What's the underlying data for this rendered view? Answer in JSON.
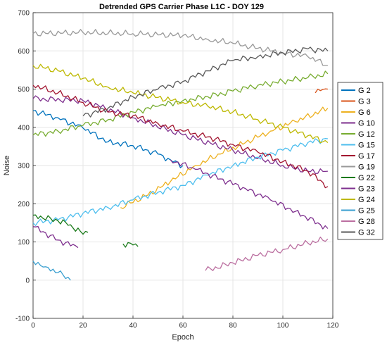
{
  "chart_data": {
    "type": "line",
    "title": "Detrended GPS Carrier Phase L1C - DOY 129",
    "xlabel": "Epoch",
    "ylabel": "Noise",
    "xlim": [
      0,
      120
    ],
    "ylim": [
      -100,
      700
    ],
    "xticks": [
      0,
      20,
      40,
      60,
      80,
      100,
      120
    ],
    "yticks": [
      -100,
      0,
      100,
      200,
      300,
      400,
      500,
      600,
      700
    ],
    "grid": true,
    "legend_position": "right",
    "series": [
      {
        "name": "G 2",
        "color": "#0072BD",
        "points": [
          [
            0,
            443
          ],
          [
            10,
            425
          ],
          [
            20,
            398
          ],
          [
            30,
            362
          ],
          [
            40,
            352
          ],
          [
            50,
            330
          ],
          [
            55,
            315
          ],
          [
            60,
            300
          ]
        ]
      },
      {
        "name": "G 3",
        "color": "#D95319",
        "points": [
          [
            113,
            490
          ],
          [
            115,
            496
          ],
          [
            118,
            500
          ]
        ]
      },
      {
        "name": "G 6",
        "color": "#EDB120",
        "points": [
          [
            35,
            190
          ],
          [
            45,
            220
          ],
          [
            55,
            258
          ],
          [
            65,
            300
          ],
          [
            75,
            330
          ],
          [
            85,
            360
          ],
          [
            95,
            390
          ],
          [
            105,
            415
          ],
          [
            118,
            450
          ]
        ]
      },
      {
        "name": "G 10",
        "color": "#7E2F8E",
        "points": [
          [
            0,
            475
          ],
          [
            20,
            470
          ],
          [
            40,
            425
          ],
          [
            60,
            380
          ],
          [
            80,
            340
          ],
          [
            100,
            300
          ],
          [
            110,
            285
          ],
          [
            118,
            285
          ]
        ]
      },
      {
        "name": "G 12",
        "color": "#77AC30",
        "points": [
          [
            0,
            380
          ],
          [
            10,
            390
          ],
          [
            20,
            405
          ],
          [
            30,
            420
          ],
          [
            40,
            440
          ],
          [
            50,
            455
          ],
          [
            60,
            470
          ],
          [
            70,
            480
          ],
          [
            80,
            495
          ],
          [
            90,
            510
          ],
          [
            100,
            520
          ],
          [
            110,
            530
          ],
          [
            118,
            540
          ]
        ]
      },
      {
        "name": "G 15",
        "color": "#4DBEEE",
        "points": [
          [
            0,
            150
          ],
          [
            10,
            158
          ],
          [
            20,
            175
          ],
          [
            30,
            190
          ],
          [
            40,
            210
          ],
          [
            50,
            230
          ],
          [
            60,
            248
          ],
          [
            70,
            275
          ],
          [
            80,
            300
          ],
          [
            90,
            322
          ],
          [
            100,
            340
          ],
          [
            110,
            360
          ],
          [
            118,
            370
          ]
        ]
      },
      {
        "name": "G 17",
        "color": "#A2142F",
        "points": [
          [
            0,
            510
          ],
          [
            10,
            490
          ],
          [
            20,
            465
          ],
          [
            30,
            440
          ],
          [
            40,
            430
          ],
          [
            50,
            410
          ],
          [
            60,
            390
          ],
          [
            70,
            375
          ],
          [
            80,
            355
          ],
          [
            90,
            335
          ],
          [
            100,
            310
          ],
          [
            110,
            285
          ],
          [
            118,
            245
          ]
        ]
      },
      {
        "name": "G 19",
        "color": "#999999",
        "points": [
          [
            0,
            645
          ],
          [
            20,
            648
          ],
          [
            40,
            645
          ],
          [
            60,
            640
          ],
          [
            70,
            630
          ],
          [
            80,
            620
          ],
          [
            90,
            607
          ],
          [
            100,
            595
          ],
          [
            110,
            585
          ],
          [
            118,
            562
          ]
        ]
      },
      {
        "name": "G 22",
        "color": "#1A7A1A",
        "points": [
          [
            0,
            170
          ],
          [
            10,
            155
          ],
          [
            15,
            145
          ],
          [
            20,
            120
          ],
          [
            22,
            125
          ]
        ]
      },
      {
        "name": "G 22 segment 2",
        "color": "#1A7A1A",
        "points": [
          [
            36,
            95
          ],
          [
            40,
            92
          ],
          [
            42,
            88
          ]
        ]
      },
      {
        "name": "G 23",
        "color": "#7E2F8E",
        "points": [
          [
            0,
            140
          ],
          [
            10,
            105
          ],
          [
            18,
            85
          ]
        ]
      },
      {
        "name": "G 23 segment 2",
        "color": "#7E2F8E",
        "points": [
          [
            55,
            315
          ],
          [
            65,
            290
          ],
          [
            75,
            265
          ],
          [
            85,
            240
          ],
          [
            95,
            210
          ],
          [
            105,
            180
          ],
          [
            118,
            135
          ]
        ]
      },
      {
        "name": "G 24",
        "color": "#BDB800",
        "points": [
          [
            0,
            562
          ],
          [
            10,
            548
          ],
          [
            20,
            528
          ],
          [
            30,
            505
          ],
          [
            40,
            490
          ],
          [
            50,
            478
          ],
          [
            60,
            465
          ],
          [
            70,
            455
          ],
          [
            80,
            440
          ],
          [
            90,
            420
          ],
          [
            100,
            400
          ],
          [
            110,
            378
          ],
          [
            118,
            360
          ]
        ]
      },
      {
        "name": "G 25",
        "color": "#3A9FD0",
        "points": [
          [
            0,
            50
          ],
          [
            5,
            35
          ],
          [
            10,
            20
          ],
          [
            15,
            0
          ]
        ]
      },
      {
        "name": "G 28",
        "color": "#BB6FA0",
        "points": [
          [
            69,
            25
          ],
          [
            80,
            45
          ],
          [
            90,
            65
          ],
          [
            100,
            80
          ],
          [
            110,
            97
          ],
          [
            118,
            108
          ]
        ]
      },
      {
        "name": "G 32",
        "color": "#595959",
        "points": [
          [
            20,
            430
          ],
          [
            30,
            450
          ],
          [
            40,
            480
          ],
          [
            50,
            500
          ],
          [
            60,
            520
          ],
          [
            70,
            548
          ],
          [
            80,
            575
          ],
          [
            90,
            585
          ],
          [
            100,
            595
          ],
          [
            110,
            605
          ],
          [
            118,
            600
          ]
        ]
      }
    ],
    "legend": [
      {
        "name": "G 2",
        "color": "#0072BD"
      },
      {
        "name": "G 3",
        "color": "#D95319"
      },
      {
        "name": "G 6",
        "color": "#EDB120"
      },
      {
        "name": "G 10",
        "color": "#7E2F8E"
      },
      {
        "name": "G 12",
        "color": "#77AC30"
      },
      {
        "name": "G 15",
        "color": "#4DBEEE"
      },
      {
        "name": "G 17",
        "color": "#A2142F"
      },
      {
        "name": "G 19",
        "color": "#999999"
      },
      {
        "name": "G 22",
        "color": "#1A7A1A"
      },
      {
        "name": "G 23",
        "color": "#7E2F8E"
      },
      {
        "name": "G 24",
        "color": "#BDB800"
      },
      {
        "name": "G 25",
        "color": "#3A9FD0"
      },
      {
        "name": "G 28",
        "color": "#BB6FA0"
      },
      {
        "name": "G 32",
        "color": "#595959"
      }
    ]
  }
}
